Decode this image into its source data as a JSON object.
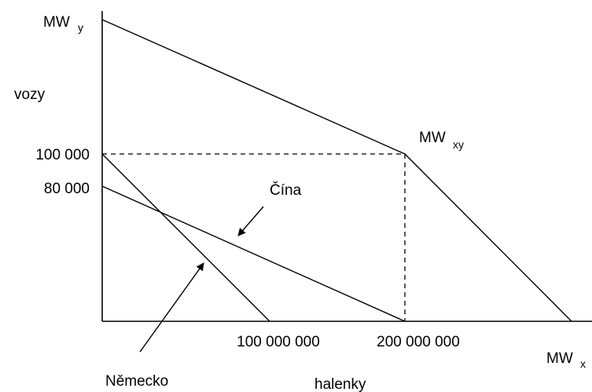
{
  "labels": {
    "mw_y_main": "MW",
    "mw_y_sub": "y",
    "mw_xy_main": "MW",
    "mw_xy_sub": "xy",
    "mw_x_main": "MW",
    "mw_x_sub": "x",
    "y_axis_title": "vozy",
    "x_axis_title": "halenky",
    "y_tick_1": "100 000",
    "y_tick_2": "80 000",
    "x_tick_1": "100 000 000",
    "x_tick_2": "200 000 000",
    "china": "Čína",
    "germany": "Německo"
  }
}
